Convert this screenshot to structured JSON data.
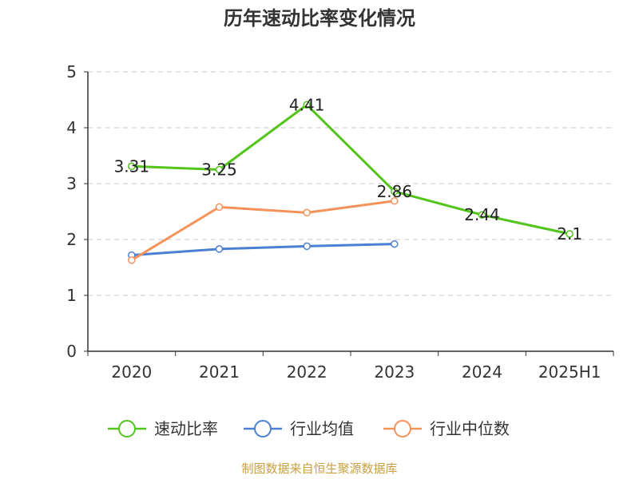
{
  "chart_data": {
    "type": "line",
    "title": "历年速动比率变化情况",
    "categories": [
      "2020",
      "2021",
      "2022",
      "2023",
      "2024",
      "2025H1"
    ],
    "yticks": [
      "0",
      "1",
      "2",
      "3",
      "4",
      "5"
    ],
    "ylim": [
      0,
      5
    ],
    "grid": true,
    "legend_position": "bottom",
    "series": [
      {
        "name": "速动比率",
        "color": "#52c41a",
        "values": [
          3.31,
          3.25,
          4.41,
          2.86,
          2.44,
          2.1
        ],
        "labels": [
          "3.31",
          "3.25",
          "4.41",
          "2.86",
          "2.44",
          "2.1"
        ]
      },
      {
        "name": "行业均值",
        "color": "#4a7fd4",
        "values": [
          1.72,
          1.83,
          1.88,
          1.92,
          null,
          null
        ],
        "labels": []
      },
      {
        "name": "行业中位数",
        "color": "#f5925a",
        "values": [
          1.63,
          2.58,
          2.48,
          2.69,
          null,
          null
        ],
        "labels": []
      }
    ],
    "source": "制图数据来自恒生聚源数据库"
  }
}
